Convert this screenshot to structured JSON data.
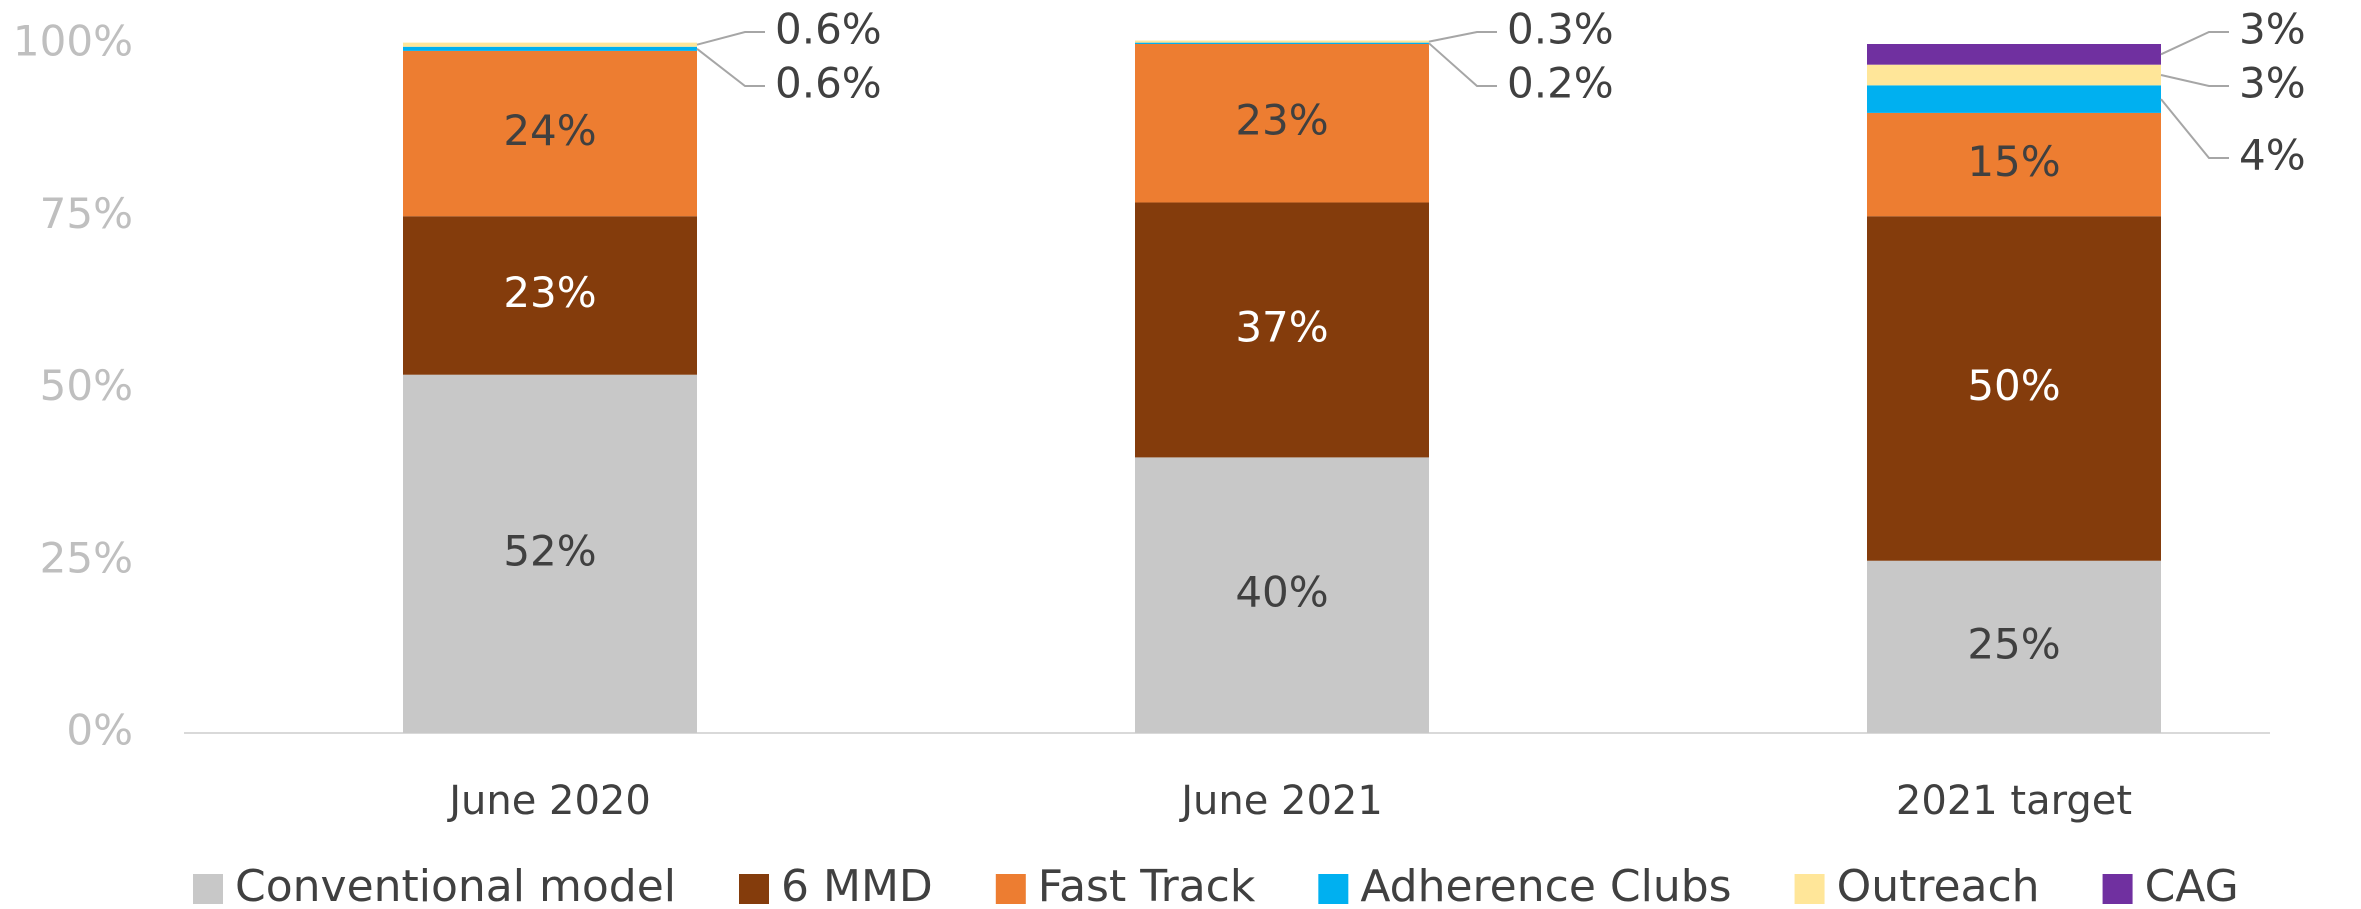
{
  "chart_data": {
    "type": "stacked_bar",
    "categories": [
      "June 2020",
      "June 2021",
      "2021 target"
    ],
    "series": [
      {
        "name": "Conventional model",
        "color": "#c8c8c8",
        "label_color": "#404040",
        "values": [
          52,
          40,
          25
        ],
        "value_labels": [
          "52%",
          "40%",
          "25%"
        ]
      },
      {
        "name": "6 MMD",
        "color": "#843c0c",
        "label_color": "#ffffff",
        "values": [
          23,
          37,
          50
        ],
        "value_labels": [
          "23%",
          "37%",
          "50%"
        ]
      },
      {
        "name": "Fast Track",
        "color": "#ed7d31",
        "label_color": "#404040",
        "values": [
          24,
          23,
          15
        ],
        "value_labels": [
          "24%",
          "23%",
          "15%"
        ]
      },
      {
        "name": "Adherence Clubs",
        "color": "#00b0f0",
        "label_color": "#404040",
        "values": [
          0.6,
          0.2,
          4
        ],
        "value_labels": [
          "0.6%",
          "0.2%",
          "4%"
        ]
      },
      {
        "name": "Outreach",
        "color": "#ffe699",
        "label_color": "#404040",
        "values": [
          0.6,
          0.3,
          3
        ],
        "value_labels": [
          "0.6%",
          "0.3%",
          "3%"
        ]
      },
      {
        "name": "CAG",
        "color": "#7030a0",
        "label_color": "#404040",
        "values": [
          null,
          null,
          3
        ],
        "value_labels": [
          null,
          null,
          "3%"
        ]
      }
    ],
    "ylim": [
      0,
      100
    ],
    "yticks": [
      {
        "value": 0,
        "label": "0%"
      },
      {
        "value": 25,
        "label": "25%"
      },
      {
        "value": 50,
        "label": "50%"
      },
      {
        "value": 75,
        "label": "75%"
      },
      {
        "value": 100,
        "label": "100%"
      }
    ],
    "grid": false,
    "legend": "bottom"
  }
}
